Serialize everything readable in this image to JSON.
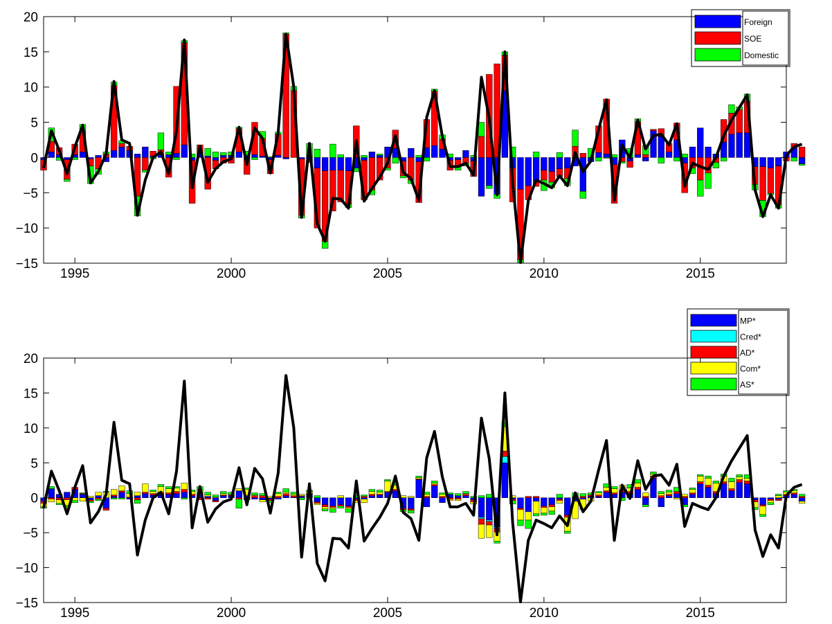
{
  "chart_data": [
    {
      "type": "bar",
      "stacked": true,
      "x_start": 1994.0,
      "x_step": 0.25,
      "xlim": [
        1994.0,
        2017.75
      ],
      "ylim": [
        -15,
        20
      ],
      "yticks": [
        -15,
        -10,
        -5,
        0,
        5,
        10,
        15,
        20
      ],
      "xticks": [
        1995,
        2000,
        2005,
        2010,
        2015
      ],
      "title": "",
      "xlabel": "",
      "ylabel": "",
      "legend_position": "top-right",
      "grid": false,
      "series": [
        {
          "name": "Foreign",
          "color": "#0000ff"
        },
        {
          "name": "SOE",
          "color": "#ff0000"
        },
        {
          "name": "Domestic",
          "color": "#00ff00"
        }
      ],
      "total_line": [
        -1.5,
        3.8,
        1.0,
        -2.3,
        1.5,
        4.6,
        -3.6,
        -2.0,
        0.5,
        10.8,
        2.5,
        2.0,
        -8.2,
        -3.2,
        0.0,
        0.8,
        -2.3,
        3.8,
        16.7,
        -4.3,
        1.6,
        -3.5,
        -1.6,
        -0.6,
        -0.2,
        4.3,
        -1.0,
        4.2,
        2.7,
        -2.2,
        3.5,
        17.5,
        10.0,
        -8.5,
        2.0,
        -9.4,
        -11.9,
        -5.8,
        -5.9,
        -7.2,
        2.4,
        -6.2,
        -4.4,
        -2.8,
        -0.8,
        3.1,
        -2.1,
        -3.0,
        -6.1,
        5.7,
        9.5,
        3.0,
        -1.3,
        -1.3,
        -0.8,
        -2.5,
        11.4,
        5.6,
        -5.3,
        15.0,
        -3.6,
        -14.9,
        -6.1,
        -3.2,
        -3.7,
        -4.3,
        -2.6,
        -4.0,
        0.7,
        -2.0,
        -0.5,
        4.0,
        8.2,
        -6.1,
        1.8,
        -0.1,
        5.3,
        1.2,
        3.1,
        3.3,
        1.8,
        4.8,
        -4.1,
        -0.8,
        -1.3,
        -1.7,
        0.0,
        3.1,
        5.3,
        7.1,
        8.9,
        -4.6,
        -8.4,
        -5.3,
        -7.2,
        0.3,
        1.5,
        1.9
      ],
      "foreign": [
        -0.3,
        0.8,
        0.4,
        -0.3,
        0.4,
        0.8,
        -0.2,
        0.3,
        -0.6,
        1.0,
        1.5,
        1.0,
        0.5,
        1.5,
        0.2,
        0.4,
        0.4,
        0.6,
        1.8,
        -0.4,
        0.6,
        0.2,
        -0.4,
        0.3,
        0.3,
        0.8,
        0.3,
        0.4,
        0.2,
        -0.3,
        0.3,
        -0.2,
        0.0,
        -0.2,
        -0.4,
        -1.5,
        -1.9,
        -1.8,
        -1.8,
        -1.9,
        -1.5,
        -0.4,
        0.8,
        0.3,
        1.5,
        1.3,
        -0.5,
        1.3,
        -0.6,
        1.4,
        1.7,
        1.2,
        -0.4,
        -0.3,
        1.0,
        -0.5,
        -5.5,
        -4.0,
        -5.2,
        9.5,
        -1.5,
        -4.5,
        -4.0,
        -3.3,
        -1.8,
        -2.0,
        -1.6,
        -1.5,
        -1.2,
        -4.8,
        -0.6,
        0.7,
        0.5,
        -1.0,
        2.5,
        -0.5,
        0.4,
        -0.5,
        3.8,
        3.0,
        0.8,
        2.5,
        -0.8,
        1.5,
        4.2,
        1.5,
        0.5,
        2.2,
        3.3,
        3.5,
        3.5,
        -1.3,
        -1.3,
        -1.5,
        -1.2,
        0.8,
        1.3,
        -0.9
      ],
      "soe": [
        -1.5,
        1.5,
        1.0,
        -2.8,
        1.5,
        3.0,
        -1.0,
        -1.6,
        0.5,
        9.2,
        0.5,
        0.6,
        -5.5,
        -1.8,
        0.7,
        0.7,
        -2.8,
        9.5,
        14.5,
        -6.1,
        1.2,
        -4.5,
        -1.2,
        -0.8,
        -0.8,
        3.3,
        -2.4,
        4.6,
        2.5,
        -2.0,
        3.0,
        17.5,
        9.5,
        -8.0,
        -0.3,
        -8.5,
        -10.0,
        -5.8,
        -4.5,
        -4.7,
        4.5,
        -5.6,
        -4.6,
        -3.2,
        -1.5,
        2.6,
        -2.1,
        -3.2,
        -5.8,
        4.0,
        7.7,
        1.4,
        -1.4,
        -0.8,
        -0.8,
        -2.2,
        3.0,
        11.8,
        13.3,
        5.0,
        -4.8,
        -10.0,
        -2.0,
        -0.8,
        -1.4,
        -1.5,
        -1.1,
        -1.5,
        1.6,
        0.6,
        0.0,
        3.8,
        7.8,
        -5.5,
        -0.6,
        -0.9,
        4.7,
        0.4,
        0.2,
        1.1,
        1.2,
        2.4,
        -4.2,
        -1.5,
        -3.2,
        -2.2,
        -0.7,
        3.2,
        3.0,
        3.3,
        4.5,
        -2.5,
        -4.8,
        -3.6,
        -5.5,
        -0.5,
        0.7,
        1.5
      ],
      "domestic": [
        0.0,
        1.9,
        -0.4,
        -0.3,
        -0.3,
        0.9,
        -2.5,
        -0.8,
        0.3,
        0.5,
        0.4,
        0.0,
        -2.8,
        -0.3,
        -0.2,
        2.4,
        0.4,
        -0.3,
        0.3,
        0.5,
        0.0,
        1.1,
        0.8,
        0.4,
        0.5,
        0.2,
        0.6,
        -0.3,
        1.0,
        0.1,
        0.3,
        0.2,
        0.6,
        -0.4,
        2.0,
        1.2,
        -1.0,
        1.9,
        0.4,
        -0.5,
        -0.5,
        0.3,
        -0.7,
        0.2,
        -0.3,
        -0.8,
        -0.3,
        -0.5,
        0.3,
        -0.5,
        0.3,
        0.6,
        0.5,
        -0.7,
        -0.4,
        0.3,
        2.0,
        -0.4,
        -0.6,
        0.5,
        1.5,
        -0.4,
        0.0,
        0.8,
        -1.5,
        -0.8,
        0.7,
        -1.0,
        2.3,
        -1.0,
        1.3,
        -0.5,
        -0.1,
        0.4,
        -0.2,
        1.3,
        0.4,
        1.3,
        0.0,
        -0.8,
        0.0,
        -0.5,
        0.5,
        -0.8,
        -2.3,
        -2.2,
        -0.8,
        -0.5,
        1.2,
        0.4,
        1.0,
        -0.8,
        -2.3,
        -0.2,
        -0.5,
        0.0,
        -0.5,
        -0.2
      ]
    },
    {
      "type": "bar",
      "stacked": true,
      "x_start": 1994.0,
      "x_step": 0.25,
      "xlim": [
        1994.0,
        2017.75
      ],
      "ylim": [
        -15,
        20
      ],
      "yticks": [
        -15,
        -10,
        -5,
        0,
        5,
        10,
        15,
        20
      ],
      "xticks": [
        1995,
        2000,
        2005,
        2010,
        2015
      ],
      "title": "",
      "xlabel": "",
      "ylabel": "",
      "legend_position": "top-right, outside above",
      "grid": false,
      "series": [
        {
          "name": "MP*",
          "color": "#0000ff"
        },
        {
          "name": "Cred*",
          "color": "#00ffff"
        },
        {
          "name": "AD*",
          "color": "#ff0000"
        },
        {
          "name": "Com*",
          "color": "#ffff00"
        },
        {
          "name": "AS*",
          "color": "#00ff00"
        }
      ],
      "total_line": [
        -1.5,
        3.8,
        1.0,
        -2.3,
        1.5,
        4.6,
        -3.6,
        -2.0,
        0.5,
        10.8,
        2.5,
        2.0,
        -8.2,
        -3.2,
        0.0,
        0.8,
        -2.3,
        3.8,
        16.7,
        -4.3,
        1.6,
        -3.5,
        -1.6,
        -0.6,
        -0.2,
        4.3,
        -1.0,
        4.2,
        2.7,
        -2.2,
        3.5,
        17.5,
        10.0,
        -8.5,
        2.0,
        -9.4,
        -11.9,
        -5.8,
        -5.9,
        -7.2,
        2.4,
        -6.2,
        -4.4,
        -2.8,
        -0.8,
        3.1,
        -2.1,
        -3.0,
        -6.1,
        5.7,
        9.5,
        3.0,
        -1.3,
        -1.3,
        -0.8,
        -2.5,
        11.4,
        5.6,
        -5.3,
        15.0,
        -3.6,
        -14.9,
        -6.1,
        -3.2,
        -3.7,
        -4.3,
        -2.6,
        -4.0,
        0.7,
        -2.0,
        -0.5,
        4.0,
        8.2,
        -6.1,
        1.8,
        -0.1,
        5.3,
        1.2,
        3.1,
        3.3,
        1.8,
        4.8,
        -4.1,
        -0.8,
        -1.3,
        -1.7,
        0.0,
        3.1,
        5.3,
        7.1,
        8.9,
        -4.6,
        -8.4,
        -5.3,
        -7.2,
        0.3,
        1.5,
        1.9
      ],
      "mp": [
        -0.5,
        1.3,
        0.5,
        0.8,
        1.2,
        0.5,
        -0.3,
        0.3,
        -1.5,
        0.2,
        0.8,
        -0.2,
        0.3,
        0.6,
        0.4,
        0.5,
        0.5,
        0.6,
        0.8,
        0.3,
        0.5,
        0.2,
        -0.4,
        0.3,
        0.3,
        1.0,
        0.3,
        -0.2,
        -0.3,
        -0.2,
        -0.2,
        0.3,
        0.1,
        0.2,
        0.5,
        -0.6,
        -1.0,
        -1.2,
        -1.0,
        -1.2,
        -0.2,
        -0.2,
        0.3,
        0.4,
        0.8,
        1.0,
        -1.5,
        -1.6,
        2.6,
        -1.3,
        1.7,
        -0.7,
        0.5,
        0.3,
        0.3,
        -0.3,
        -2.8,
        -3.2,
        -4.2,
        5.0,
        -0.2,
        -1.5,
        -2.0,
        -0.5,
        -1.2,
        -1.0,
        -0.2,
        -2.5,
        -0.5,
        -0.2,
        0.2,
        0.2,
        0.8,
        0.5,
        0.8,
        0.6,
        1.2,
        -1.0,
        2.8,
        -1.3,
        0.3,
        0.6,
        -1.0,
        0.5,
        2.0,
        1.5,
        0.6,
        2.0,
        1.0,
        2.2,
        2.0,
        -0.3,
        -1.0,
        -0.2,
        -0.2,
        0.3,
        0.5,
        -0.5
      ],
      "cred": [
        0.0,
        0.0,
        0.0,
        0.0,
        0.0,
        0.0,
        0.0,
        0.0,
        0.0,
        0.0,
        0.0,
        0.0,
        0.0,
        0.0,
        0.0,
        0.0,
        0.0,
        0.0,
        0.0,
        0.0,
        0.0,
        0.0,
        0.0,
        0.0,
        0.0,
        0.0,
        0.0,
        0.0,
        0.0,
        0.0,
        0.0,
        0.0,
        0.0,
        0.0,
        0.0,
        0.0,
        0.0,
        0.0,
        0.0,
        0.0,
        0.0,
        0.0,
        0.0,
        0.0,
        0.0,
        0.0,
        0.0,
        0.0,
        0.0,
        0.0,
        0.0,
        0.0,
        0.0,
        0.0,
        0.0,
        0.0,
        -0.2,
        -0.2,
        -0.2,
        0.9,
        0.0,
        0.0,
        0.0,
        0.0,
        0.0,
        0.0,
        0.0,
        0.0,
        0.0,
        0.0,
        0.0,
        0.0,
        0.0,
        0.0,
        0.0,
        0.0,
        0.0,
        0.0,
        0.0,
        0.0,
        0.0,
        0.0,
        0.0,
        0.0,
        0.0,
        0.0,
        0.0,
        0.0,
        0.0,
        0.0,
        0.0,
        0.0,
        0.0,
        0.0,
        0.0,
        0.0,
        0.0,
        0.0
      ],
      "ad": [
        -0.3,
        -0.2,
        -0.3,
        -0.3,
        0.3,
        0.1,
        -0.2,
        -0.2,
        -0.3,
        0.2,
        0.2,
        0.1,
        -0.3,
        0.2,
        0.2,
        0.3,
        0.2,
        0.3,
        0.4,
        0.2,
        -0.3,
        -0.2,
        -0.2,
        0.1,
        0.1,
        -0.2,
        -0.3,
        0.3,
        0.3,
        -0.2,
        0.2,
        0.3,
        0.2,
        0.1,
        0.1,
        -0.2,
        -0.3,
        -0.2,
        -0.2,
        -0.2,
        -0.2,
        0.2,
        0.2,
        0.1,
        0.1,
        0.2,
        -0.2,
        -0.2,
        0.1,
        0.2,
        0.2,
        0.2,
        -0.2,
        -0.2,
        0.2,
        -0.3,
        -0.8,
        -0.5,
        -0.5,
        0.8,
        -0.2,
        -0.2,
        0.2,
        0.2,
        -0.2,
        -0.3,
        -0.2,
        -0.3,
        0.1,
        0.2,
        0.2,
        0.2,
        0.2,
        0.2,
        0.3,
        0.3,
        0.3,
        0.2,
        0.3,
        0.3,
        0.2,
        0.3,
        0.2,
        0.2,
        0.3,
        0.3,
        0.3,
        0.3,
        0.3,
        0.4,
        0.4,
        -0.3,
        -0.2,
        -0.2,
        -0.2,
        0.2,
        0.2,
        0.2
      ],
      "com": [
        -0.5,
        -0.4,
        -0.5,
        -0.8,
        -0.4,
        -0.5,
        0.2,
        0.5,
        0.8,
        0.8,
        0.7,
        0.5,
        0.5,
        1.2,
        0.3,
        0.8,
        0.6,
        0.5,
        0.9,
        0.4,
        0.6,
        0.2,
        0.1,
        0.2,
        0.1,
        0.3,
        0.9,
        0.1,
        -0.3,
        0.2,
        0.4,
        0.2,
        0.2,
        0.2,
        0.3,
        -0.2,
        -0.3,
        -0.2,
        0.3,
        -0.2,
        -0.3,
        -0.5,
        0.4,
        0.3,
        1.5,
        0.6,
        0.3,
        0.2,
        0.2,
        0.3,
        0.2,
        0.3,
        -0.2,
        -0.2,
        0.1,
        -0.3,
        -2.0,
        -1.8,
        -1.3,
        3.5,
        0.3,
        -1.5,
        -1.2,
        -1.8,
        -0.8,
        -0.6,
        -0.4,
        -2.0,
        -2.5,
        -1.5,
        -0.5,
        0.3,
        0.5,
        0.6,
        0.7,
        0.5,
        0.6,
        0.5,
        0.3,
        0.3,
        0.3,
        -0.2,
        0.3,
        0.5,
        0.8,
        1.0,
        1.2,
        0.8,
        1.0,
        0.4,
        0.4,
        -0.8,
        -1.2,
        -0.3,
        0.3,
        0.3,
        0.3,
        -0.3
      ],
      "as": [
        -0.2,
        0.3,
        -0.2,
        -0.3,
        -0.3,
        0.1,
        -0.2,
        -0.2,
        0.1,
        -0.2,
        -0.2,
        0.4,
        -0.5,
        0.0,
        0.2,
        0.3,
        0.3,
        0.2,
        -0.2,
        0.2,
        0.5,
        0.4,
        0.3,
        0.3,
        0.3,
        -1.3,
        0.2,
        0.3,
        0.3,
        -0.3,
        0.2,
        0.5,
        0.3,
        -0.3,
        0.2,
        0.3,
        -0.3,
        -0.5,
        -0.3,
        -0.5,
        0.3,
        0.2,
        0.3,
        0.3,
        0.2,
        0.3,
        -0.3,
        -0.4,
        0.2,
        0.3,
        0.3,
        0.2,
        0.2,
        0.3,
        0.3,
        0.2,
        0.3,
        0.5,
        -0.3,
        0.6,
        -0.5,
        -0.8,
        -1.2,
        -0.3,
        -0.3,
        -0.5,
        0.5,
        -0.3,
        0.6,
        0.4,
        0.3,
        0.2,
        0.5,
        0.3,
        -0.4,
        0.5,
        0.5,
        -0.3,
        0.3,
        0.3,
        0.3,
        0.6,
        -0.3,
        0.2,
        0.2,
        0.3,
        0.3,
        0.3,
        0.5,
        0.3,
        0.5,
        -0.3,
        -0.3,
        -0.3,
        0.2,
        0.2,
        0.2,
        0.3
      ]
    }
  ]
}
